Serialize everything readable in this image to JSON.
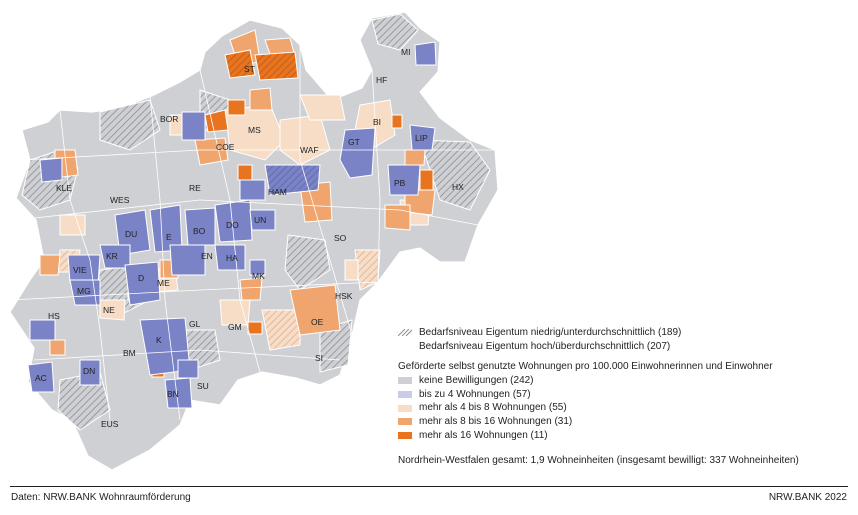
{
  "map": {
    "labels": [
      "ST",
      "MI",
      "HF",
      "BOR",
      "BI",
      "MS",
      "LIP",
      "COE",
      "WAF",
      "GT",
      "KLE",
      "PB",
      "HX",
      "RE",
      "HAM",
      "WES",
      "UN",
      "DO",
      "BO",
      "E",
      "DU",
      "SO",
      "EN",
      "HA",
      "KR",
      "VIE",
      "D",
      "ME",
      "MK",
      "MG",
      "HSK",
      "NE",
      "HS",
      "GL",
      "GM",
      "OE",
      "K",
      "BM",
      "SI",
      "AC",
      "DN",
      "SU",
      "BN",
      "EUS"
    ],
    "colors": {
      "none": "#cfd0d3",
      "upto4": "#7b83c7",
      "4to8": "#f7dcc6",
      "8to16": "#f0a56e",
      "over16": "#e8741f",
      "hatch": "#8a8d95",
      "border": "#ffffff"
    }
  },
  "legend": {
    "hatch_low": "Bedarfsniveau Eigentum niedrig/unterdurchschnittlich (189)",
    "hatch_high": "Bedarfsniveau Eigentum hoch/überdurchschnittlich (207)",
    "heading": "Geförderte selbst genutzte Wohnungen pro 100.000 Einwohnerinnen und Einwohner",
    "items": [
      {
        "label": "keine Bewilligungen (242)",
        "color": "#cfd0d3"
      },
      {
        "label": "bis zu 4 Wohnungen (57)",
        "color": "#c9cbe8"
      },
      {
        "label": "mehr als 4 bis 8 Wohnungen (55)",
        "color": "#f7dcc6"
      },
      {
        "label": "mehr als 8 bis 16 Wohnungen (31)",
        "color": "#f0a56e"
      },
      {
        "label": "mehr als 16 Wohnungen (11)",
        "color": "#e8741f"
      }
    ],
    "total": "Nordrhein-Westfalen gesamt: 1,9 Wohneinheiten (insgesamt bewilligt: 337 Wohneinheiten)"
  },
  "footer": {
    "source": "Daten: NRW.BANK Wohnraumförderung",
    "credit": "NRW.BANK 2022"
  }
}
